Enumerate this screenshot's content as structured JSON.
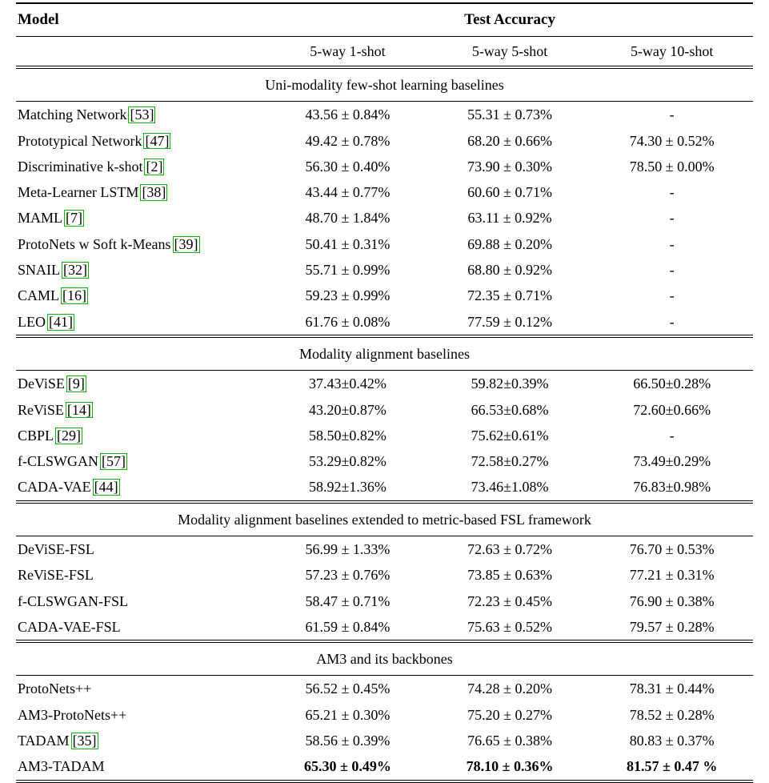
{
  "page": {
    "background": "#ffffff"
  },
  "table": {
    "citation_border_color": "#00b300",
    "header": {
      "model_label": "Model",
      "accuracy_label": "Test Accuracy",
      "columns": [
        "5-way 1-shot",
        "5-way 5-shot",
        "5-way 10-shot"
      ]
    },
    "sections": [
      {
        "title": "Uni-modality few-shot learning baselines",
        "rows": [
          {
            "model": "Matching Network",
            "cite": "[53]",
            "values": [
              "43.56 ± 0.84%",
              "55.31 ± 0.73%",
              "-"
            ]
          },
          {
            "model": "Prototypical Network",
            "cite": "[47]",
            "values": [
              "49.42 ± 0.78%",
              "68.20 ± 0.66%",
              "74.30 ± 0.52%"
            ]
          },
          {
            "model": "Discriminative k-shot",
            "cite": "[2]",
            "values": [
              "56.30 ± 0.40%",
              "73.90 ± 0.30%",
              "78.50 ± 0.00%"
            ]
          },
          {
            "model": "Meta-Learner LSTM",
            "cite": "[38]",
            "values": [
              "43.44 ± 0.77%",
              "60.60 ± 0.71%",
              "-"
            ]
          },
          {
            "model": "MAML",
            "cite": "[7]",
            "values": [
              "48.70 ± 1.84%",
              "63.11 ± 0.92%",
              "-"
            ]
          },
          {
            "model": "ProtoNets w Soft k-Means",
            "cite": "[39]",
            "values": [
              "50.41 ± 0.31%",
              "69.88 ± 0.20%",
              "-"
            ]
          },
          {
            "model": "SNAIL",
            "cite": "[32]",
            "values": [
              "55.71 ± 0.99%",
              "68.80 ± 0.92%",
              "-"
            ]
          },
          {
            "model": "CAML",
            "cite": "[16]",
            "values": [
              "59.23 ± 0.99%",
              "72.35 ± 0.71%",
              "-"
            ]
          },
          {
            "model": "LEO",
            "cite": "[41]",
            "values": [
              "61.76 ± 0.08%",
              "77.59 ± 0.12%",
              "-"
            ]
          }
        ]
      },
      {
        "title": "Modality alignment baselines",
        "rows": [
          {
            "model": "DeViSE",
            "cite": "[9]",
            "values": [
              "37.43±0.42%",
              "59.82±0.39%",
              "66.50±0.28%"
            ]
          },
          {
            "model": "ReViSE",
            "cite": "[14]",
            "values": [
              "43.20±0.87%",
              "66.53±0.68%",
              "72.60±0.66%"
            ]
          },
          {
            "model": "CBPL",
            "cite": "[29]",
            "values": [
              "58.50±0.82%",
              "75.62±0.61%",
              "-"
            ]
          },
          {
            "model": "f-CLSWGAN",
            "cite": "[57]",
            "values": [
              "53.29±0.82%",
              "72.58±0.27%",
              "73.49±0.29%"
            ]
          },
          {
            "model": "CADA-VAE",
            "cite": "[44]",
            "values": [
              "58.92±1.36%",
              "73.46±1.08%",
              "76.83±0.98%"
            ]
          }
        ]
      },
      {
        "title": "Modality alignment baselines extended to metric-based FSL framework",
        "rows": [
          {
            "model": "DeViSE-FSL",
            "cite": "",
            "values": [
              "56.99 ± 1.33%",
              "72.63 ± 0.72%",
              "76.70 ± 0.53%"
            ]
          },
          {
            "model": "ReViSE-FSL",
            "cite": "",
            "values": [
              "57.23 ± 0.76%",
              "73.85 ± 0.63%",
              "77.21 ± 0.31%"
            ]
          },
          {
            "model": "f-CLSWGAN-FSL",
            "cite": "",
            "values": [
              "58.47 ± 0.71%",
              "72.23 ± 0.45%",
              "76.90 ± 0.38%"
            ]
          },
          {
            "model": "CADA-VAE-FSL",
            "cite": "",
            "values": [
              "61.59 ± 0.84%",
              "75.63 ± 0.52%",
              "79.57 ± 0.28%"
            ]
          }
        ]
      },
      {
        "title": "AM3 and its backbones",
        "rows": [
          {
            "model": "ProtoNets++",
            "cite": "",
            "values": [
              "56.52 ± 0.45%",
              "74.28 ± 0.20%",
              "78.31 ± 0.44%"
            ]
          },
          {
            "model": "AM3-ProtoNets++",
            "cite": "",
            "values": [
              "65.21 ± 0.30%",
              "75.20 ± 0.27%",
              "78.52 ± 0.28%"
            ]
          },
          {
            "model": "TADAM",
            "cite": "[35]",
            "values": [
              "58.56 ± 0.39%",
              "76.65 ± 0.38%",
              "80.83 ± 0.37%"
            ]
          },
          {
            "model": "AM3-TADAM",
            "cite": "",
            "values": [
              "65.30 ± 0.49%",
              "78.10 ± 0.36%",
              "81.57 ± 0.47 %"
            ],
            "bold_values": true
          }
        ]
      }
    ]
  }
}
